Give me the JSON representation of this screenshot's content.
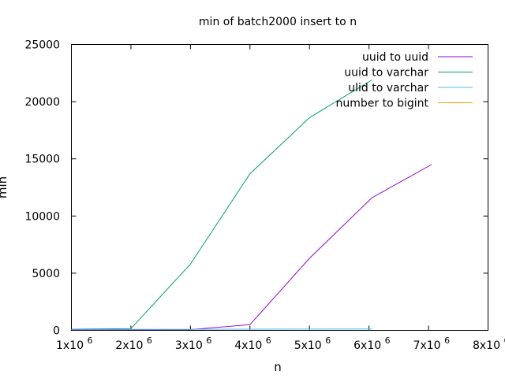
{
  "chart_data": {
    "type": "line",
    "title": "min of batch2000 insert to n",
    "xlabel": "n",
    "ylabel": "min",
    "xlim": [
      1000000,
      8000000
    ],
    "ylim": [
      0,
      25000
    ],
    "x_ticks": [
      {
        "value": 1000000,
        "base": "1x10",
        "exp": "6"
      },
      {
        "value": 2000000,
        "base": "2x10",
        "exp": "6"
      },
      {
        "value": 3000000,
        "base": "3x10",
        "exp": "6"
      },
      {
        "value": 4000000,
        "base": "4x10",
        "exp": "6"
      },
      {
        "value": 5000000,
        "base": "5x10",
        "exp": "6"
      },
      {
        "value": 6000000,
        "base": "6x10",
        "exp": "6"
      },
      {
        "value": 7000000,
        "base": "7x10",
        "exp": "6"
      },
      {
        "value": 8000000,
        "base": "8x10",
        "exp": "6"
      }
    ],
    "y_ticks": [
      {
        "value": 0,
        "label": "0"
      },
      {
        "value": 5000,
        "label": "5000"
      },
      {
        "value": 10000,
        "label": "10000"
      },
      {
        "value": 15000,
        "label": "15000"
      },
      {
        "value": 20000,
        "label": "20000"
      },
      {
        "value": 25000,
        "label": "25000"
      }
    ],
    "grid": false,
    "legend_position": "top-right",
    "series": [
      {
        "name": "uuid to uuid",
        "color": "#9400d3",
        "x": [
          1000000,
          2000000,
          3000000,
          4000000,
          5000000,
          6050000,
          7050000
        ],
        "y": [
          50,
          60,
          70,
          500,
          6300,
          11600,
          14500
        ]
      },
      {
        "name": "uuid to varchar",
        "color": "#009e73",
        "x": [
          1000000,
          2000000,
          3000000,
          4000000,
          5000000,
          6050000
        ],
        "y": [
          100,
          150,
          5800,
          13700,
          18600,
          21900
        ]
      },
      {
        "name": "ulid to varchar",
        "color": "#56b4e9",
        "x": [
          1000000,
          2000000,
          3000000,
          4000000,
          5000000,
          6050000
        ],
        "y": [
          80,
          80,
          90,
          100,
          110,
          120
        ]
      },
      {
        "name": "number to bigint",
        "color": "#e69f00",
        "x": [],
        "y": []
      }
    ]
  }
}
